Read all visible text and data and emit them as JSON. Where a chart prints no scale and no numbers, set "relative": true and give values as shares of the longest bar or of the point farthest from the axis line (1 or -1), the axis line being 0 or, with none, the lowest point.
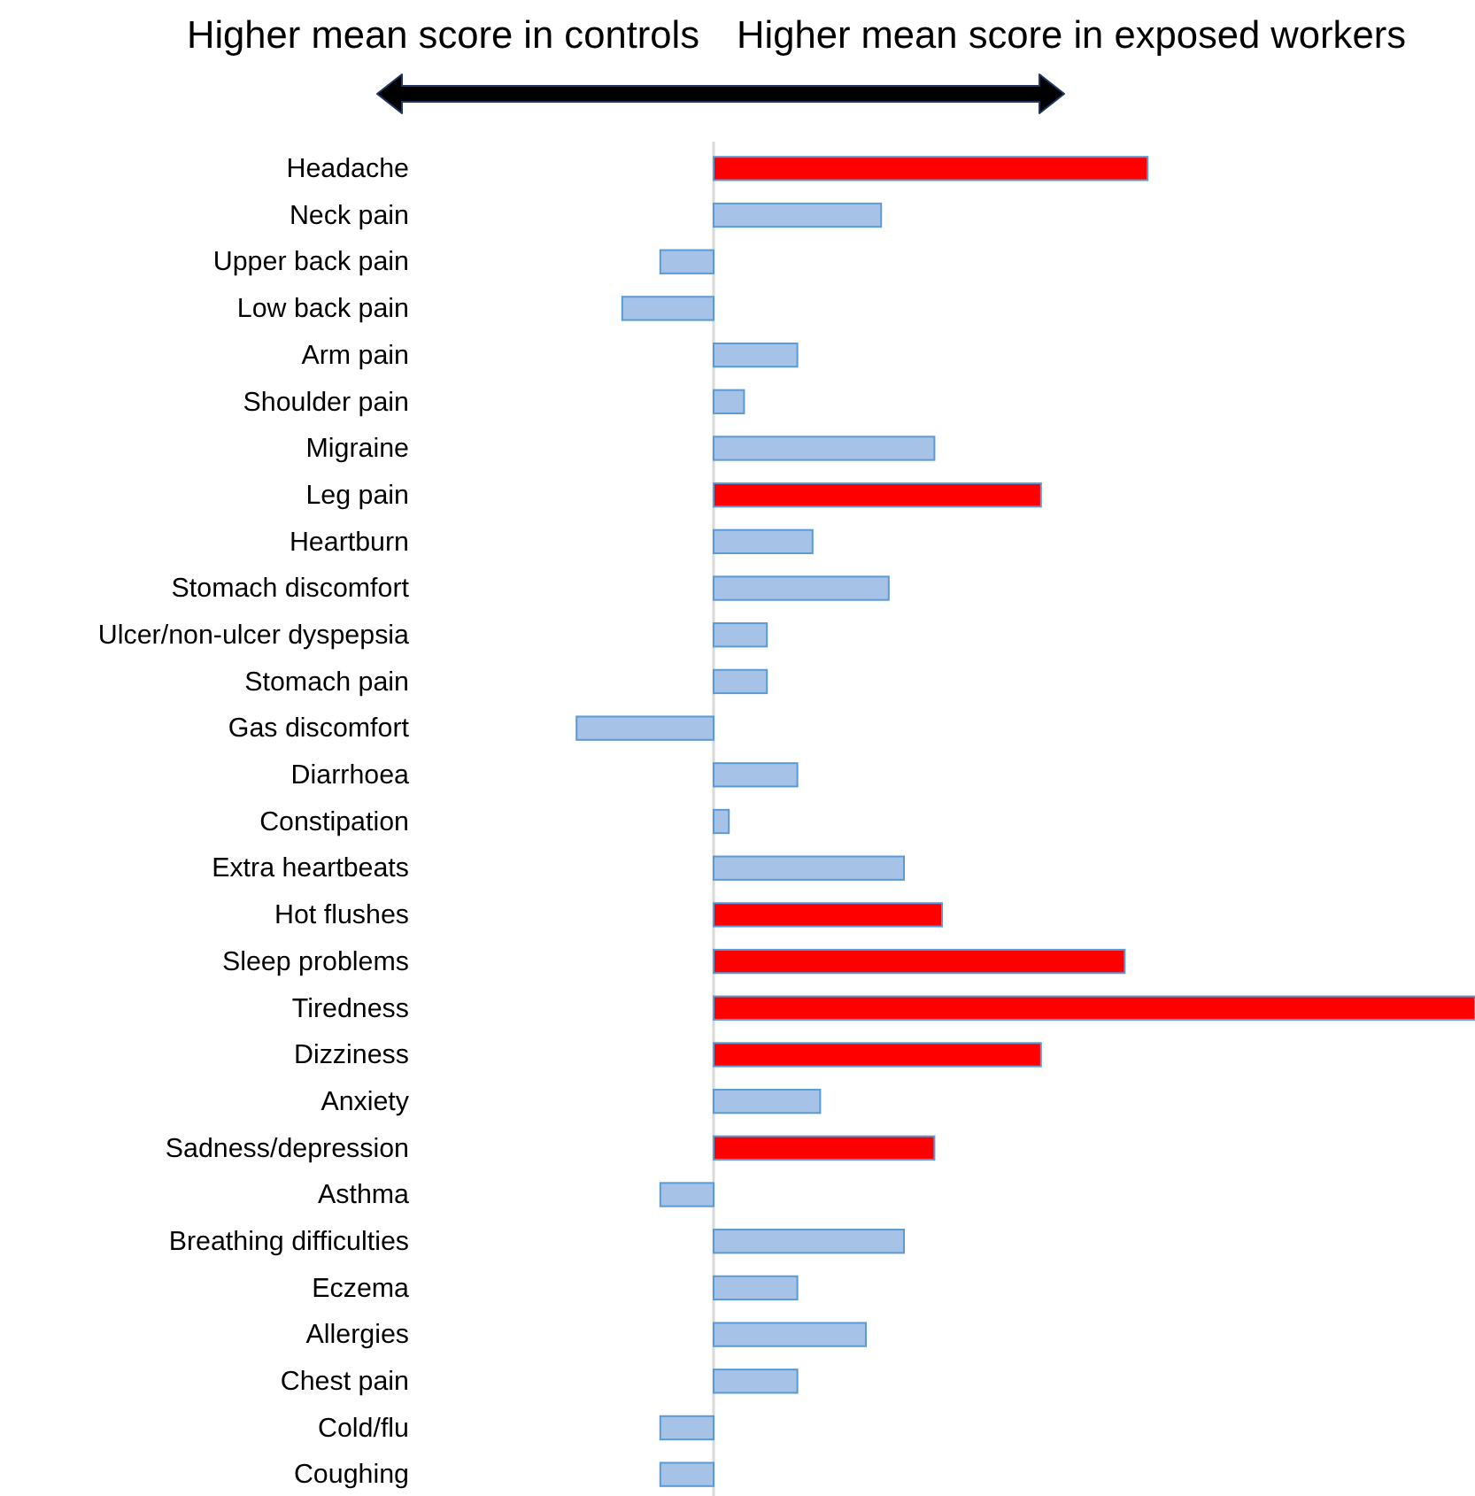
{
  "chart_data": {
    "type": "bar",
    "orientation": "horizontal",
    "relative": true,
    "annotations": [
      "Higher mean score in controls",
      "Higher mean score in exposed workers"
    ],
    "categories": [
      "Headache",
      "Neck pain",
      "Upper back pain",
      "Low back pain",
      "Arm pain",
      "Shoulder pain",
      "Migraine",
      "Leg pain",
      "Heartburn",
      "Stomach discomfort",
      "Ulcer/non-ulcer dyspepsia",
      "Stomach pain",
      "Gas discomfort",
      "Diarrhoea",
      "Constipation",
      "Extra heartbeats",
      "Hot flushes",
      "Sleep problems",
      "Tiredness",
      "Dizziness",
      "Anxiety",
      "Sadness/depression",
      "Asthma",
      "Breathing difficulties",
      "Eczema",
      "Allergies",
      "Chest pain",
      "Cold/flu",
      "Coughing"
    ],
    "values": [
      0.57,
      0.22,
      -0.07,
      -0.12,
      0.11,
      0.04,
      0.29,
      0.43,
      0.13,
      0.23,
      0.07,
      0.07,
      -0.18,
      0.11,
      0.02,
      0.25,
      0.3,
      0.54,
      1,
      0.43,
      0.14,
      0.29,
      -0.07,
      0.25,
      0.11,
      0.2,
      0.11,
      -0.07,
      -0.07
    ],
    "colors": [
      "#ff0000",
      "#a6c2e7",
      "#a6c2e7",
      "#a6c2e7",
      "#a6c2e7",
      "#a6c2e7",
      "#a6c2e7",
      "#ff0000",
      "#a6c2e7",
      "#a6c2e7",
      "#a6c2e7",
      "#a6c2e7",
      "#a6c2e7",
      "#a6c2e7",
      "#a6c2e7",
      "#a6c2e7",
      "#ff0000",
      "#ff0000",
      "#ff0000",
      "#ff0000",
      "#a6c2e7",
      "#ff0000",
      "#a6c2e7",
      "#a6c2e7",
      "#a6c2e7",
      "#a6c2e7",
      "#a6c2e7",
      "#a6c2e7",
      "#a6c2e7"
    ]
  }
}
